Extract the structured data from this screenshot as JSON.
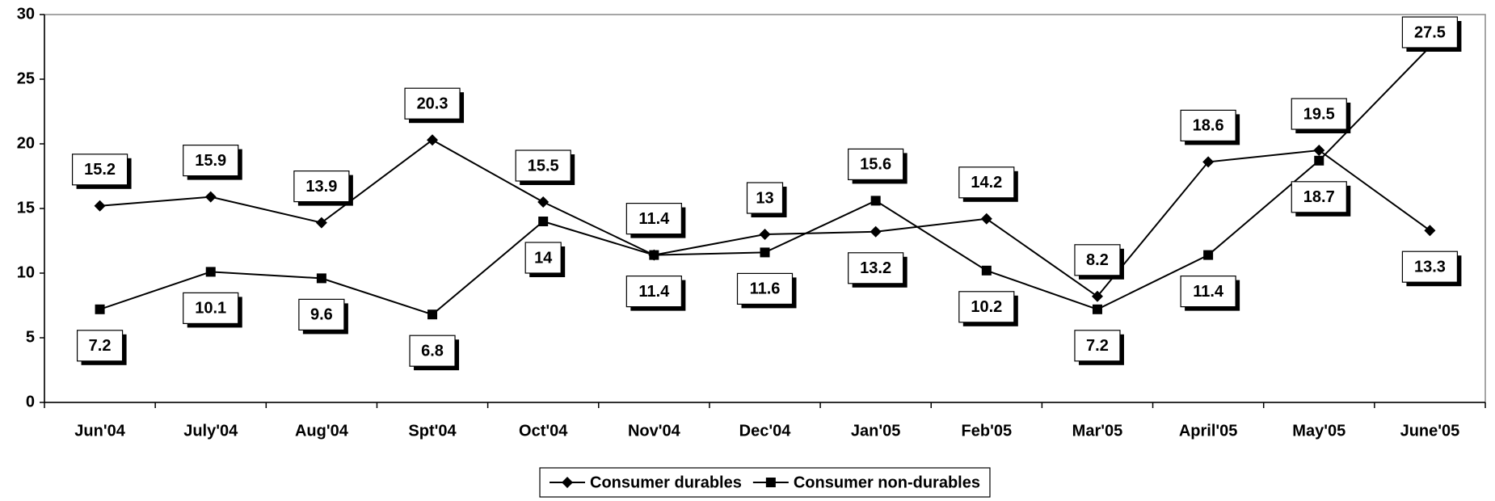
{
  "chart_data": {
    "type": "line",
    "categories": [
      "Jun'04",
      "July'04",
      "Aug'04",
      "Spt'04",
      "Oct'04",
      "Nov'04",
      "Dec'04",
      "Jan'05",
      "Feb'05",
      "Mar'05",
      "April'05",
      "May'05",
      "June'05"
    ],
    "series": [
      {
        "name": "Consumer durables",
        "color": "#000000",
        "marker": "diamond",
        "values": [
          15.2,
          15.9,
          13.9,
          20.3,
          15.5,
          11.4,
          13,
          13.2,
          14.2,
          8.2,
          18.6,
          19.5,
          13.3
        ]
      },
      {
        "name": "Consumer non-durables",
        "color": "#000000",
        "marker": "square",
        "values": [
          7.2,
          10.1,
          9.6,
          6.8,
          14,
          11.4,
          11.6,
          15.6,
          10.2,
          7.2,
          11.4,
          18.7,
          27.5
        ]
      }
    ],
    "ylim": [
      0,
      30
    ],
    "yticks": [
      0,
      5,
      10,
      15,
      20,
      25,
      30
    ],
    "grid": false,
    "legend": "bottom"
  }
}
